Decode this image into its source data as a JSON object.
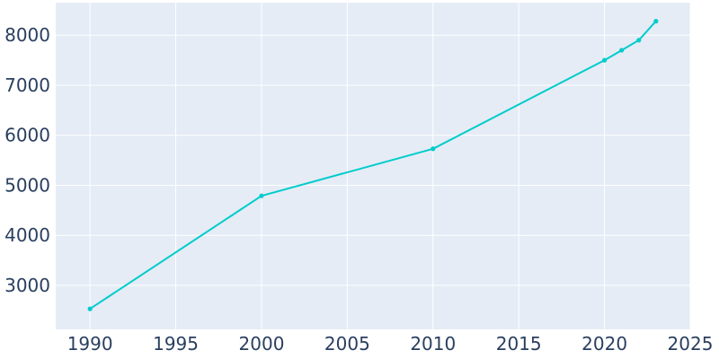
{
  "chart_data": {
    "type": "line",
    "title": "",
    "xlabel": "",
    "ylabel": "",
    "xlim": [
      1988,
      2025
    ],
    "ylim": [
      2120,
      8650
    ],
    "x_ticks": [
      1990,
      1995,
      2000,
      2005,
      2010,
      2015,
      2020,
      2025
    ],
    "y_ticks": [
      3000,
      4000,
      5000,
      6000,
      7000,
      8000
    ],
    "x_tick_labels": [
      "1990",
      "1995",
      "2000",
      "2005",
      "2010",
      "2015",
      "2020",
      "2025"
    ],
    "y_tick_labels": [
      "3000",
      "4000",
      "5000",
      "6000",
      "7000",
      "8000"
    ],
    "grid": true,
    "series": [
      {
        "color": "#00cccc",
        "x": [
          1990,
          2000,
          2010,
          2020,
          2021,
          2022,
          2023
        ],
        "y": [
          2530,
          4790,
          5730,
          7500,
          7700,
          7900,
          8280
        ]
      }
    ]
  }
}
